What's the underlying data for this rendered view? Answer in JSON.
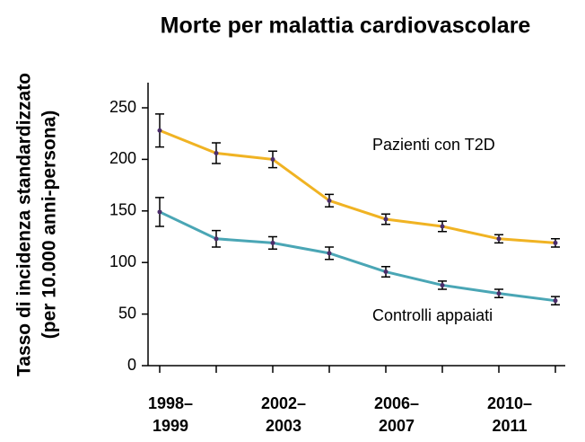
{
  "chart_data": {
    "type": "line",
    "title": "Morte per malattia cardiovascolare",
    "y_label": [
      "Tasso di incidenza standardizzato",
      "(per 10.000 anni-persona)"
    ],
    "categories": [
      [
        "1998–",
        "1999"
      ],
      null,
      [
        "2002–",
        "2003"
      ],
      null,
      [
        "2006–",
        "2007"
      ],
      null,
      [
        "2010–",
        "2011"
      ],
      null
    ],
    "ylim": [
      0,
      250
    ],
    "yticks": [
      0,
      50,
      100,
      150,
      200,
      250
    ],
    "marker_color": "#4b2d6b",
    "series": [
      {
        "name": "Pazienti con T2D",
        "color": "#f0b323",
        "values": [
          228,
          206,
          200,
          160,
          142,
          135,
          123,
          119
        ],
        "errors": [
          16,
          10,
          8,
          6,
          5,
          5,
          4,
          4
        ]
      },
      {
        "name": "Controlli appaiati",
        "color": "#4aa6b5",
        "values": [
          149,
          123,
          119,
          109,
          91,
          78,
          70,
          63
        ],
        "errors": [
          14,
          8,
          6,
          6,
          5,
          4,
          4,
          4
        ]
      }
    ]
  }
}
